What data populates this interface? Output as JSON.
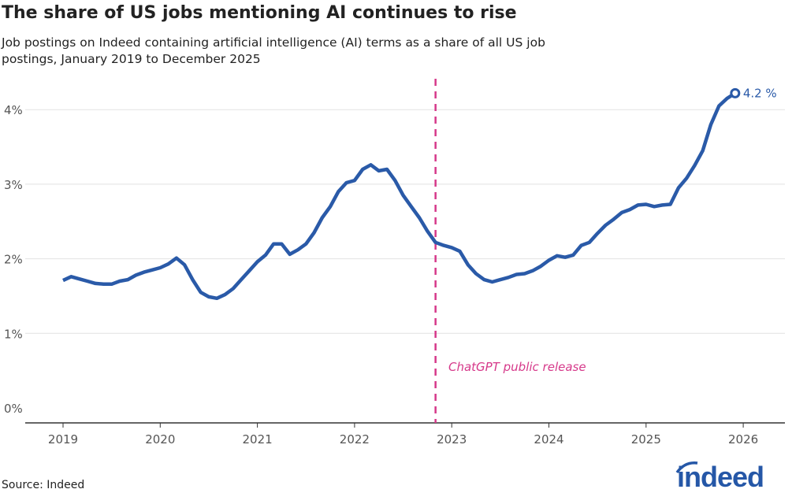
{
  "chart_data": {
    "type": "line",
    "title": "The share of US jobs mentioning AI continues to rise",
    "subtitle": "Job postings on Indeed containing artificial intelligence (AI) terms as a share of all US job postings, January 2019 to December 2025",
    "source": "Source: Indeed",
    "xlabel": "",
    "ylabel": "",
    "ylim": [
      0,
      4.2
    ],
    "yticks": [
      "0%",
      "1%",
      "2%",
      "3%",
      "4%"
    ],
    "xticks": [
      "2019",
      "2020",
      "2021",
      "2022",
      "2023",
      "2024",
      "2025",
      "2026"
    ],
    "grid": true,
    "line_color": "#2a5aa8",
    "end_label": "4.2 %",
    "annotation": {
      "label": "ChatGPT public release",
      "date": "2022-11",
      "color": "#d6398a"
    },
    "series": [
      {
        "x": [
          "2019-01",
          "2019-02",
          "2019-03",
          "2019-04",
          "2019-05",
          "2019-06",
          "2019-07",
          "2019-08",
          "2019-09",
          "2019-10",
          "2019-11",
          "2019-12",
          "2020-01",
          "2020-02",
          "2020-03",
          "2020-04",
          "2020-05",
          "2020-06",
          "2020-07",
          "2020-08",
          "2020-09",
          "2020-10",
          "2020-11",
          "2020-12",
          "2021-01",
          "2021-02",
          "2021-03",
          "2021-04",
          "2021-05",
          "2021-06",
          "2021-07",
          "2021-08",
          "2021-09",
          "2021-10",
          "2021-11",
          "2021-12",
          "2022-01",
          "2022-02",
          "2022-03",
          "2022-04",
          "2022-05",
          "2022-06",
          "2022-07",
          "2022-08",
          "2022-09",
          "2022-10",
          "2022-11",
          "2022-12",
          "2023-01",
          "2023-02",
          "2023-03",
          "2023-04",
          "2023-05",
          "2023-06",
          "2023-07",
          "2023-08",
          "2023-09",
          "2023-10",
          "2023-11",
          "2023-12",
          "2024-01",
          "2024-02",
          "2024-03",
          "2024-04",
          "2024-05",
          "2024-06",
          "2024-07",
          "2024-08",
          "2024-09",
          "2024-10",
          "2024-11",
          "2024-12",
          "2025-01",
          "2025-02",
          "2025-03",
          "2025-04",
          "2025-05",
          "2025-06",
          "2025-07",
          "2025-08",
          "2025-09",
          "2025-10",
          "2025-11",
          "2025-12"
        ],
        "values": [
          1.71,
          1.76,
          1.73,
          1.7,
          1.67,
          1.66,
          1.66,
          1.7,
          1.72,
          1.78,
          1.82,
          1.85,
          1.88,
          1.93,
          2.01,
          1.92,
          1.72,
          1.55,
          1.49,
          1.47,
          1.52,
          1.6,
          1.72,
          1.84,
          1.96,
          2.05,
          2.2,
          2.2,
          2.06,
          2.12,
          2.2,
          2.35,
          2.55,
          2.7,
          2.9,
          3.02,
          3.05,
          3.2,
          3.26,
          3.18,
          3.2,
          3.05,
          2.85,
          2.7,
          2.55,
          2.37,
          2.22,
          2.18,
          2.15,
          2.1,
          1.92,
          1.8,
          1.72,
          1.69,
          1.72,
          1.75,
          1.79,
          1.8,
          1.84,
          1.9,
          1.98,
          2.04,
          2.02,
          2.05,
          2.18,
          2.22,
          2.34,
          2.45,
          2.53,
          2.62,
          2.66,
          2.72,
          2.73,
          2.7,
          2.72,
          2.73,
          2.95,
          3.08,
          3.25,
          3.45,
          3.8,
          4.05,
          4.15,
          4.22
        ]
      }
    ]
  },
  "brand": {
    "logo_text": "indeed",
    "color": "#2557a7"
  }
}
